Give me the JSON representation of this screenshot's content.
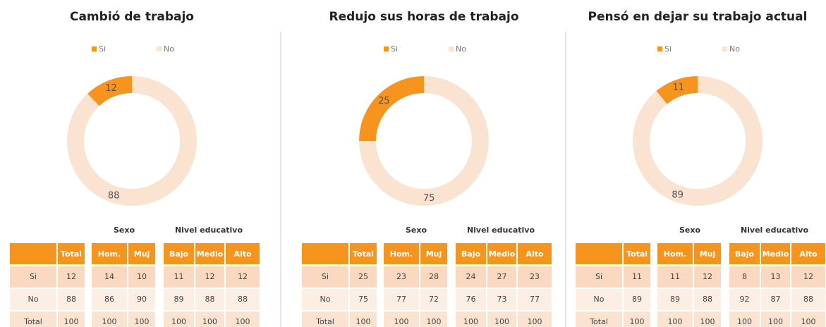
{
  "chart_data": [
    {
      "type": "pie",
      "title": "Cambió de trabajo",
      "categories": [
        "Si",
        "No"
      ],
      "values": [
        12,
        88
      ],
      "colors": [
        "#f7941d",
        "#fbe3d1"
      ],
      "donut": true,
      "legend": "top"
    },
    {
      "type": "pie",
      "title": "Redujo sus horas de trabajo",
      "categories": [
        "Si",
        "No"
      ],
      "values": [
        25,
        75
      ],
      "colors": [
        "#f7941d",
        "#fbe3d1"
      ],
      "donut": true,
      "legend": "top"
    },
    {
      "type": "pie",
      "title": "Pensó en dejar su trabajo actual",
      "categories": [
        "Si",
        "No"
      ],
      "values": [
        11,
        89
      ],
      "colors": [
        "#f7941d",
        "#fbe3d1"
      ],
      "donut": true,
      "legend": "top"
    }
  ],
  "tables": [
    {
      "groups": [
        "Sexo",
        "Nivel educativo"
      ],
      "columns": [
        "Total",
        "Hom.",
        "Muj",
        "Bajo",
        "Medio",
        "Alto"
      ],
      "rows": [
        {
          "label": "Si",
          "values": [
            12,
            14,
            10,
            11,
            12,
            12
          ]
        },
        {
          "label": "No",
          "values": [
            88,
            86,
            90,
            89,
            88,
            88
          ]
        },
        {
          "label": "Total",
          "values": [
            100,
            100,
            100,
            100,
            100,
            100
          ]
        }
      ]
    },
    {
      "groups": [
        "Sexo",
        "Nivel educativo"
      ],
      "columns": [
        "Total",
        "Hom.",
        "Muj",
        "Bajo",
        "Medio",
        "Alto"
      ],
      "rows": [
        {
          "label": "Si",
          "values": [
            25,
            23,
            28,
            24,
            27,
            23
          ]
        },
        {
          "label": "No",
          "values": [
            75,
            77,
            72,
            76,
            73,
            77
          ]
        },
        {
          "label": "Total",
          "values": [
            100,
            100,
            100,
            100,
            100,
            100
          ]
        }
      ]
    },
    {
      "groups": [
        "Sexo",
        "Nivel educativo"
      ],
      "columns": [
        "Total",
        "Hom.",
        "Muj",
        "Bajo",
        "Medio",
        "Alto"
      ],
      "rows": [
        {
          "label": "Si",
          "values": [
            11,
            11,
            12,
            8,
            13,
            12
          ]
        },
        {
          "label": "No",
          "values": [
            89,
            89,
            88,
            92,
            87,
            88
          ]
        },
        {
          "label": "Total",
          "values": [
            100,
            100,
            100,
            100,
            100,
            100
          ]
        }
      ]
    }
  ]
}
